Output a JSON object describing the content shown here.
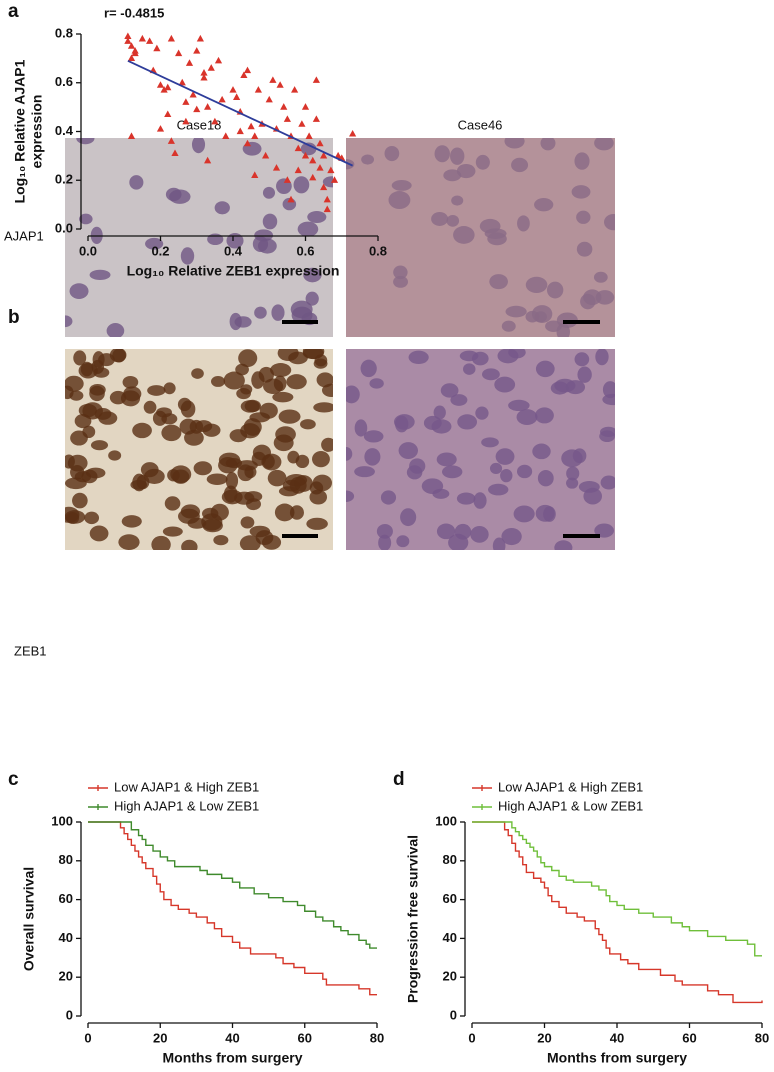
{
  "chart_data": [
    {
      "type": "scatter",
      "panel_label": "a",
      "title": "r= -0.4815",
      "x_label": "Log₁₀ Relative ZEB1 expression",
      "y_label": [
        "Log₁₀ Relative AJAP1",
        "expression"
      ],
      "color": "#d9342b",
      "x": [
        0.11,
        0.11,
        0.12,
        0.13,
        0.13,
        0.12,
        0.12,
        0.15,
        0.17,
        0.18,
        0.19,
        0.2,
        0.2,
        0.21,
        0.22,
        0.22,
        0.23,
        0.23,
        0.24,
        0.25,
        0.26,
        0.27,
        0.27,
        0.28,
        0.29,
        0.3,
        0.3,
        0.31,
        0.32,
        0.32,
        0.33,
        0.33,
        0.34,
        0.35,
        0.36,
        0.37,
        0.38,
        0.4,
        0.41,
        0.42,
        0.42,
        0.43,
        0.44,
        0.44,
        0.45,
        0.46,
        0.46,
        0.47,
        0.48,
        0.49,
        0.5,
        0.51,
        0.52,
        0.52,
        0.53,
        0.54,
        0.55,
        0.55,
        0.56,
        0.56,
        0.57,
        0.58,
        0.58,
        0.59,
        0.6,
        0.6,
        0.61,
        0.62,
        0.62,
        0.63,
        0.63,
        0.64,
        0.64,
        0.65,
        0.65,
        0.66,
        0.66,
        0.67,
        0.68,
        0.69,
        0.7,
        0.73
      ],
      "y": [
        0.79,
        0.77,
        0.75,
        0.73,
        0.72,
        0.7,
        0.38,
        0.78,
        0.77,
        0.65,
        0.74,
        0.59,
        0.41,
        0.57,
        0.58,
        0.47,
        0.78,
        0.36,
        0.31,
        0.72,
        0.6,
        0.52,
        0.44,
        0.68,
        0.55,
        0.73,
        0.49,
        0.78,
        0.64,
        0.62,
        0.5,
        0.28,
        0.66,
        0.44,
        0.69,
        0.53,
        0.38,
        0.57,
        0.54,
        0.4,
        0.48,
        0.63,
        0.35,
        0.65,
        0.42,
        0.38,
        0.22,
        0.57,
        0.43,
        0.3,
        0.53,
        0.61,
        0.41,
        0.25,
        0.59,
        0.5,
        0.45,
        0.2,
        0.38,
        0.12,
        0.57,
        0.33,
        0.24,
        0.43,
        0.3,
        0.5,
        0.38,
        0.28,
        0.21,
        0.45,
        0.61,
        0.35,
        0.25,
        0.3,
        0.17,
        0.08,
        0.12,
        0.24,
        0.2,
        0.3,
        0.29,
        0.39
      ],
      "fit": {
        "x": [
          0.11,
          0.73
        ],
        "y": [
          0.69,
          0.26
        ],
        "color": "#2e3d9a"
      },
      "xlim": [
        0,
        0.8
      ],
      "ylim": [
        0,
        0.8
      ],
      "xticks": [
        {
          "value": 0,
          "label": "0.0"
        },
        {
          "value": 0.2,
          "label": "0.2"
        },
        {
          "value": 0.4,
          "label": "0.4"
        },
        {
          "value": 0.6,
          "label": "0.6"
        },
        {
          "value": 0.8,
          "label": "0.8"
        }
      ],
      "yticks": [
        {
          "value": 0,
          "label": "0.0"
        },
        {
          "value": 0.2,
          "label": "0.2"
        },
        {
          "value": 0.4,
          "label": "0.4"
        },
        {
          "value": 0.6,
          "label": "0.6"
        },
        {
          "value": 0.8,
          "label": "0.8"
        }
      ]
    },
    {
      "type": "step",
      "panel_label": "c",
      "x_label": "Months from surgery",
      "y_label": [
        "Overall survival"
      ],
      "legend": "top-left",
      "xlim": [
        0,
        80
      ],
      "ylim": [
        0,
        100
      ],
      "xticks": [
        0,
        20,
        40,
        60,
        80
      ],
      "yticks": [
        0,
        20,
        40,
        60,
        80,
        100
      ],
      "series": [
        {
          "name": "Low AJAP1 & High ZEB1",
          "color": "#d6372a",
          "x": [
            0,
            8,
            9,
            10,
            11,
            12,
            13,
            14,
            15,
            16,
            18,
            19,
            20,
            21,
            23,
            25,
            28,
            30,
            33,
            35,
            37,
            40,
            42,
            45,
            52,
            54,
            57,
            60,
            65,
            66,
            75,
            78,
            80
          ],
          "y": [
            100,
            100,
            97,
            94,
            91,
            88,
            85,
            82,
            79,
            76,
            72,
            68,
            64,
            60,
            57,
            55,
            53,
            51,
            48,
            45,
            41,
            38,
            35,
            32,
            30,
            27,
            25,
            22,
            19,
            16,
            14,
            11,
            11
          ]
        },
        {
          "name": "High AJAP1 & Low ZEB1",
          "color": "#3f8a2c",
          "x": [
            0,
            10,
            12,
            14,
            15,
            16,
            18,
            20,
            22,
            24,
            31,
            33,
            37,
            40,
            42,
            46,
            50,
            54,
            58,
            60,
            63,
            65,
            68,
            70,
            72,
            75,
            77,
            78,
            80
          ],
          "y": [
            100,
            100,
            96,
            93,
            91,
            88,
            85,
            82,
            80,
            77,
            75,
            73,
            71,
            69,
            66,
            63,
            61,
            59,
            57,
            54,
            51,
            49,
            46,
            44,
            42,
            39,
            37,
            35,
            35
          ]
        }
      ]
    },
    {
      "type": "step",
      "panel_label": "d",
      "x_label": "Months from surgery",
      "y_label": [
        "Progression free survival"
      ],
      "legend": "top-left",
      "xlim": [
        0,
        80
      ],
      "ylim": [
        0,
        100
      ],
      "xticks": [
        0,
        20,
        40,
        60,
        80
      ],
      "yticks": [
        0,
        20,
        40,
        60,
        80,
        100
      ],
      "series": [
        {
          "name": "Low AJAP1 & High ZEB1",
          "color": "#d6372a",
          "x": [
            0,
            8,
            9,
            10,
            11,
            12,
            13,
            14,
            15,
            17,
            19,
            20,
            21,
            22,
            24,
            26,
            29,
            31,
            34,
            35,
            36,
            37,
            38,
            41,
            43,
            46,
            52,
            56,
            58,
            65,
            68,
            72,
            79,
            80
          ],
          "y": [
            100,
            100,
            96,
            93,
            89,
            85,
            82,
            78,
            74,
            71,
            69,
            66,
            62,
            59,
            56,
            53,
            51,
            49,
            45,
            42,
            39,
            35,
            32,
            29,
            27,
            24,
            21,
            18,
            16,
            13,
            11,
            7,
            7,
            8
          ]
        },
        {
          "name": "High AJAP1 & Low ZEB1",
          "color": "#6fbf3a",
          "x": [
            0,
            10,
            11,
            12,
            13,
            14,
            15,
            16,
            17,
            18,
            19,
            20,
            22,
            24,
            26,
            28,
            33,
            35,
            37,
            38,
            40,
            42,
            46,
            50,
            55,
            58,
            60,
            65,
            70,
            76,
            78,
            80
          ],
          "y": [
            100,
            100,
            97,
            95,
            93,
            91,
            89,
            87,
            85,
            82,
            79,
            77,
            75,
            72,
            70,
            69,
            67,
            65,
            62,
            59,
            57,
            55,
            53,
            51,
            48,
            46,
            44,
            41,
            39,
            37,
            31,
            31
          ]
        }
      ]
    }
  ],
  "panel_b": {
    "label": "b",
    "columns": [
      "Case18",
      "Case46"
    ],
    "rows": [
      "AJAP1",
      "ZEB1"
    ]
  }
}
